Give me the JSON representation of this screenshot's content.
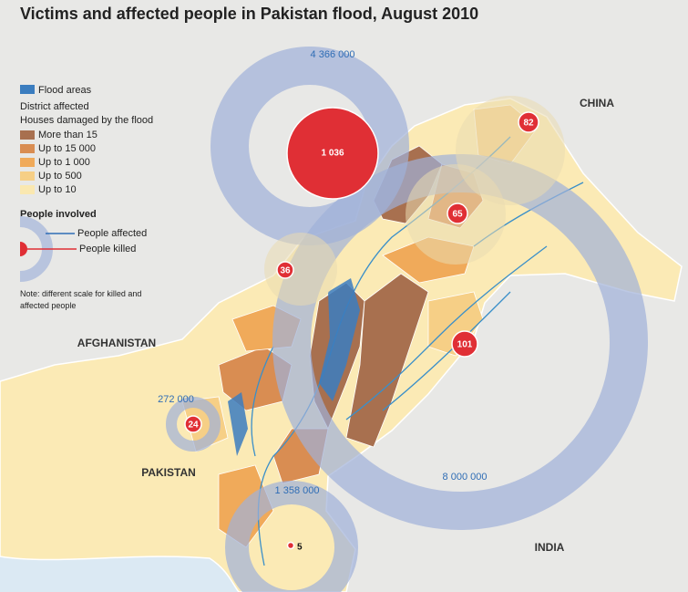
{
  "header": {
    "title": "Victims and affected people in Pakistan flood, August 2010"
  },
  "legend": {
    "flood_areas": "Flood areas",
    "district_title": "District affected",
    "district_subtitle": "Houses damaged by the flood",
    "district_classes": [
      {
        "label": "More than 15",
        "color": "#a8704f"
      },
      {
        "label": "Up to 15 000",
        "color": "#d98d52"
      },
      {
        "label": "Up to 1 000",
        "color": "#f0aa5a"
      },
      {
        "label": "Up to 500",
        "color": "#f6cf86"
      },
      {
        "label": "Up to 10",
        "color": "#fae8b0"
      }
    ],
    "people_title": "People involved",
    "people_affected": "People affected",
    "people_killed": "People killed",
    "note": "Note: different scale for killed and affected people"
  },
  "countries": [
    "CHINA",
    "AFGHANISTAN",
    "PAKISTAN",
    "INDIA"
  ],
  "regions": [
    {
      "affected": "4 366 000",
      "killed": "1 036"
    },
    {
      "affected": "8 000 000",
      "killed": "101"
    },
    {
      "affected": "272 000",
      "killed": "24"
    },
    {
      "affected": "1 358 000",
      "killed": "5"
    },
    {
      "killed": "82"
    },
    {
      "killed": "65"
    },
    {
      "killed": "36"
    }
  ]
}
